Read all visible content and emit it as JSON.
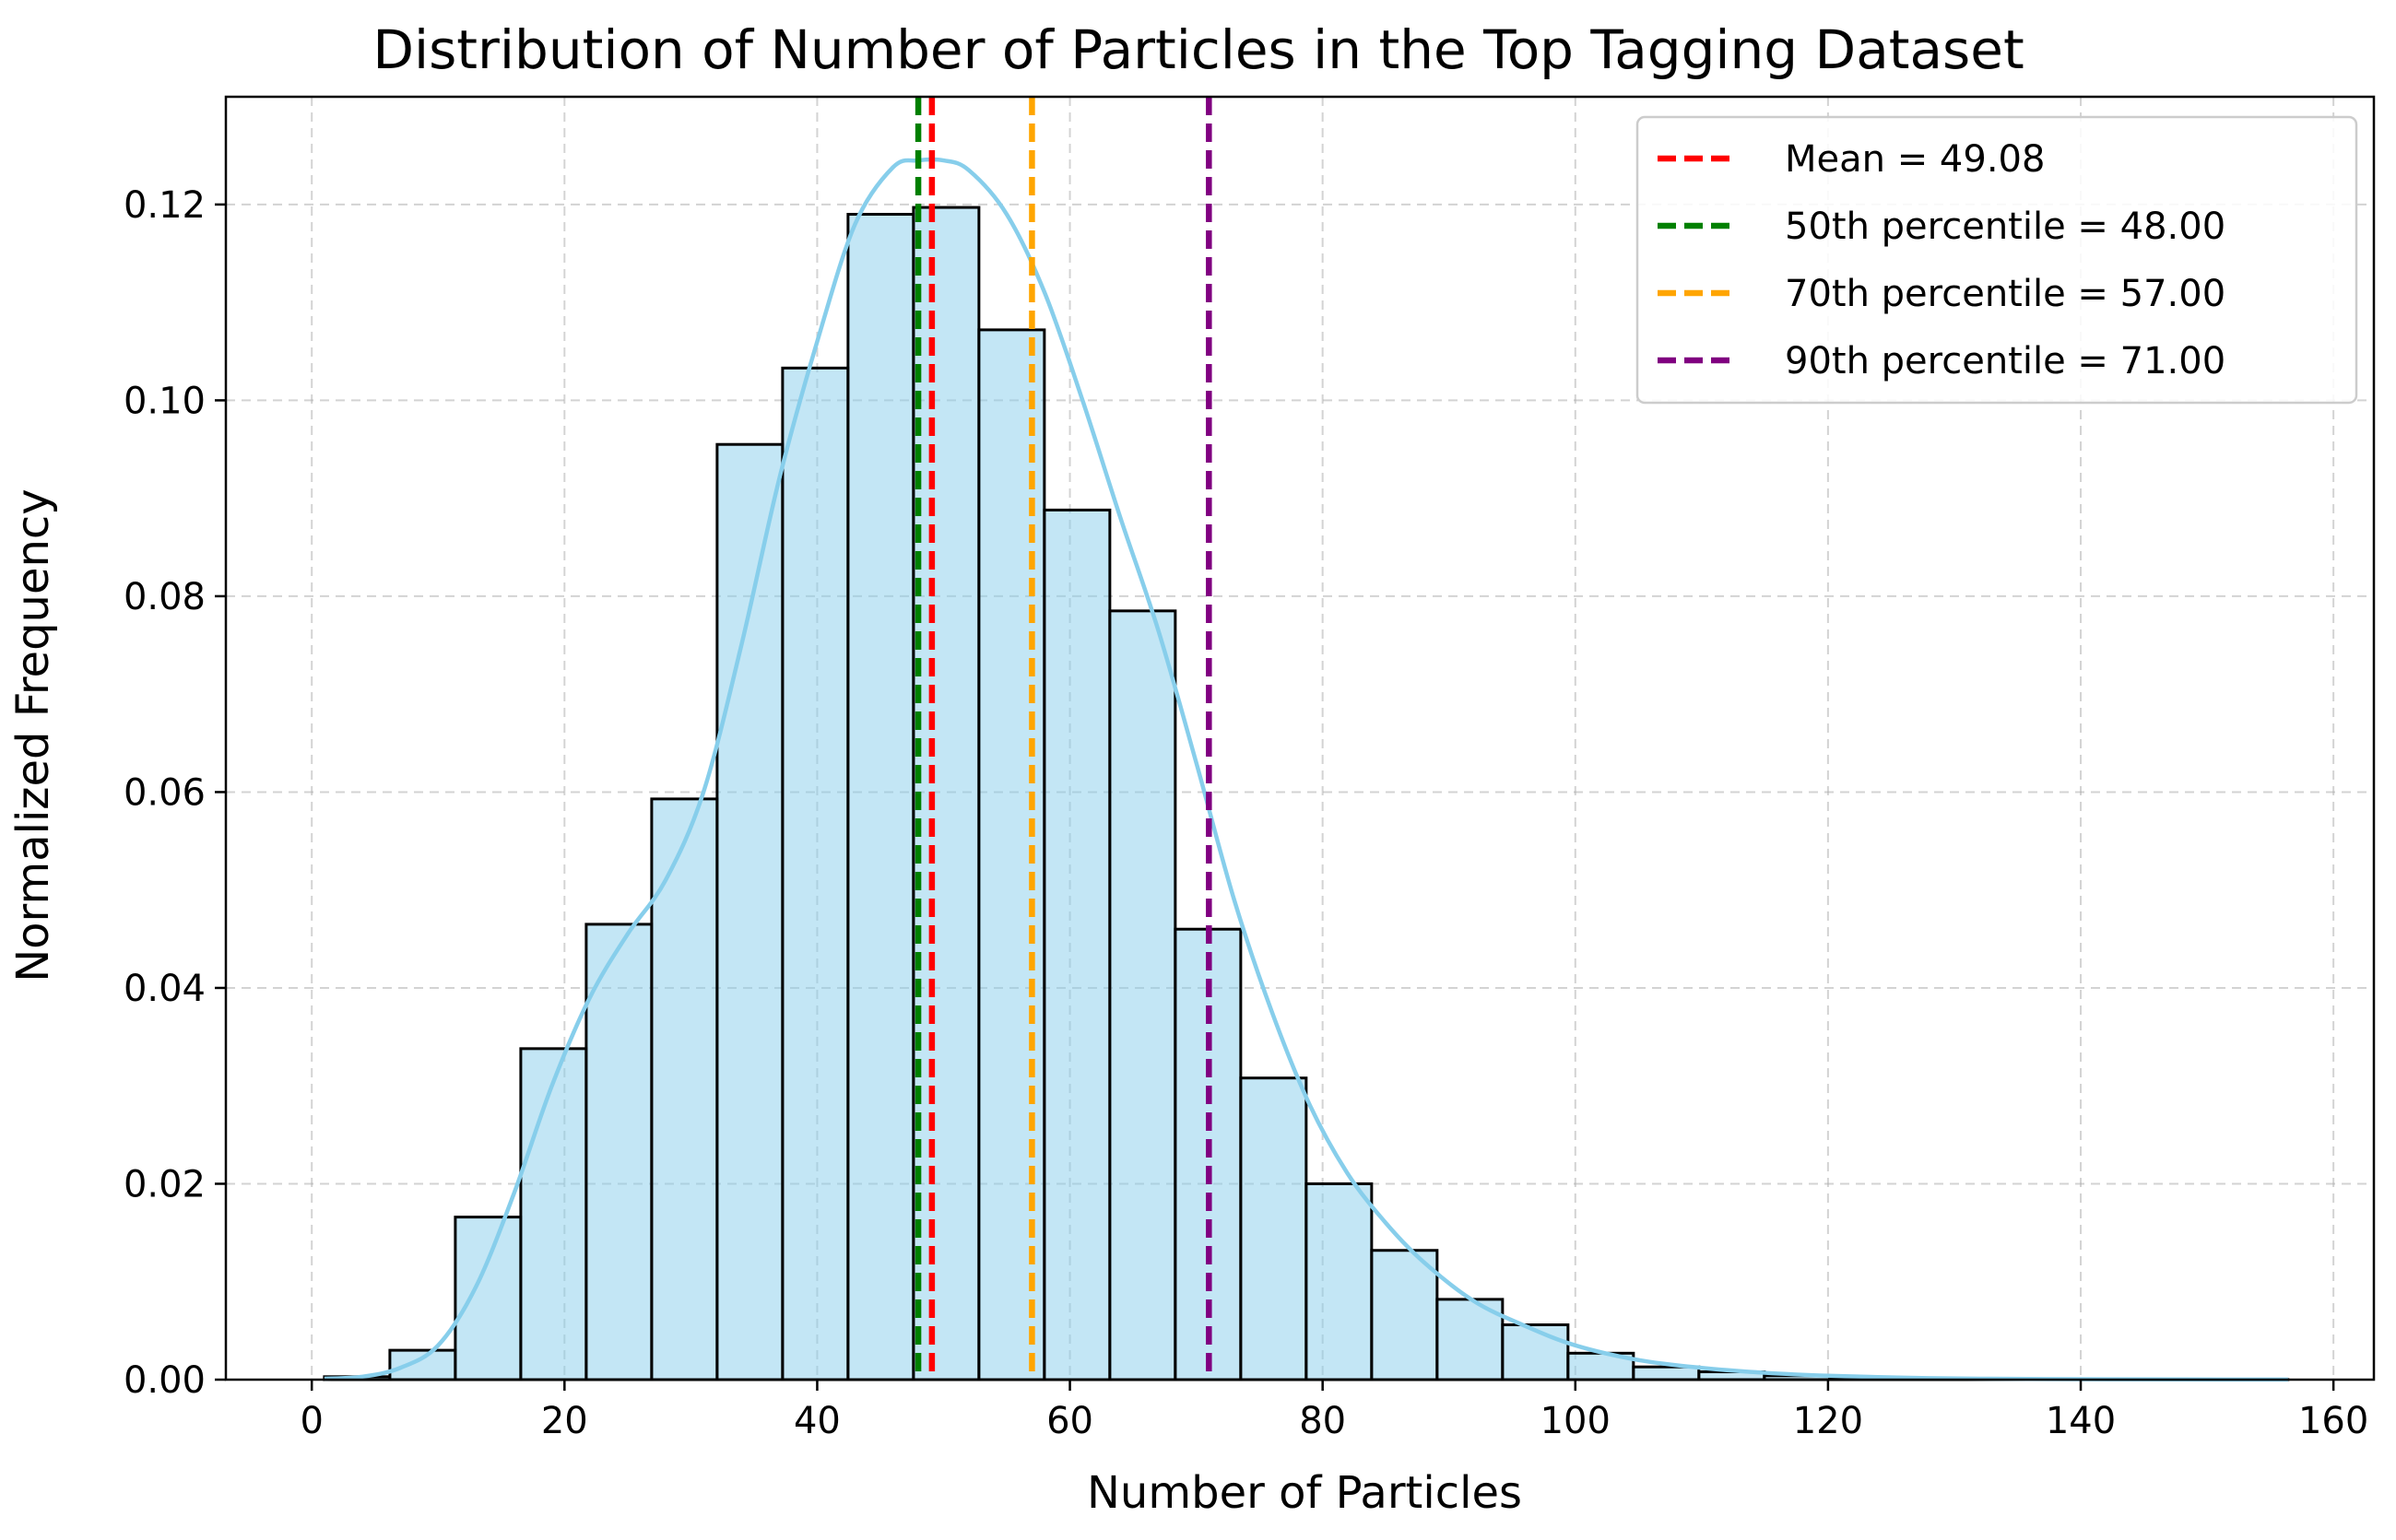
{
  "chart_data": {
    "type": "bar",
    "title": "Distribution of Number of Particles in the Top Tagging Dataset",
    "xlabel": "Number of Particles",
    "ylabel": "Normalized Frequency",
    "xlim": [
      -6.8,
      163.2
    ],
    "ylim": [
      0,
      0.131
    ],
    "xticks": [
      0,
      20,
      40,
      60,
      80,
      100,
      120,
      140,
      160
    ],
    "xtick_labels": [
      "0",
      "20",
      "40",
      "60",
      "80",
      "100",
      "120",
      "140",
      "160"
    ],
    "yticks": [
      0.0,
      0.02,
      0.04,
      0.06,
      0.08,
      0.1,
      0.12
    ],
    "ytick_labels": [
      "0.00",
      "0.02",
      "0.04",
      "0.06",
      "0.08",
      "0.10",
      "0.12"
    ],
    "grid": true,
    "legend_position": "top-right",
    "bin_edges": [
      1.0,
      6.18,
      11.36,
      16.54,
      21.72,
      26.9,
      32.08,
      37.26,
      42.44,
      47.62,
      52.8,
      57.98,
      63.16,
      68.34,
      73.52,
      78.7,
      83.88,
      89.06,
      94.24,
      99.42,
      104.6,
      109.78,
      114.96,
      120.14,
      125.32,
      130.5,
      135.68,
      140.86,
      146.04,
      151.22,
      156.4
    ],
    "values": [
      0.0003,
      0.003,
      0.0166,
      0.0338,
      0.0465,
      0.0593,
      0.0955,
      0.1033,
      0.119,
      0.1197,
      0.1072,
      0.0888,
      0.0785,
      0.046,
      0.0308,
      0.02,
      0.0132,
      0.0082,
      0.0056,
      0.0027,
      0.0013,
      0.0008,
      0.0004,
      0.0002,
      0.0001,
      0.0001,
      5e-05,
      3e-05,
      2e-05,
      1e-05
    ],
    "bar_color": "#87ceeb",
    "kde": {
      "color": "#87ceeb",
      "x": [
        1,
        4,
        7,
        10,
        13,
        16,
        19,
        22,
        25,
        28,
        31,
        34,
        37,
        40,
        43,
        46,
        48,
        50,
        52,
        55,
        58,
        61,
        64,
        67,
        70,
        73,
        76,
        79,
        82,
        85,
        88,
        92,
        96,
        100,
        105,
        110,
        115,
        120,
        126,
        132,
        140,
        148,
        156.4
      ],
      "y": [
        0.0001,
        0.0003,
        0.0012,
        0.0035,
        0.0095,
        0.019,
        0.03,
        0.039,
        0.0455,
        0.051,
        0.06,
        0.075,
        0.092,
        0.106,
        0.118,
        0.1238,
        0.1245,
        0.1245,
        0.1235,
        0.119,
        0.111,
        0.1,
        0.088,
        0.0765,
        0.063,
        0.049,
        0.0375,
        0.028,
        0.021,
        0.016,
        0.012,
        0.008,
        0.0055,
        0.0035,
        0.002,
        0.0012,
        0.0007,
        0.0004,
        0.0002,
        0.0001,
        5e-05,
        2e-05,
        1e-05
      ]
    },
    "vlines": [
      {
        "label": "Mean = 49.08",
        "x": 49.08,
        "color": "#ff0000"
      },
      {
        "label": "50th percentile = 48.00",
        "x": 48.0,
        "color": "#008000"
      },
      {
        "label": "70th percentile = 57.00",
        "x": 57.0,
        "color": "#ffa500"
      },
      {
        "label": "90th percentile = 71.00",
        "x": 71.0,
        "color": "#800080"
      }
    ]
  }
}
